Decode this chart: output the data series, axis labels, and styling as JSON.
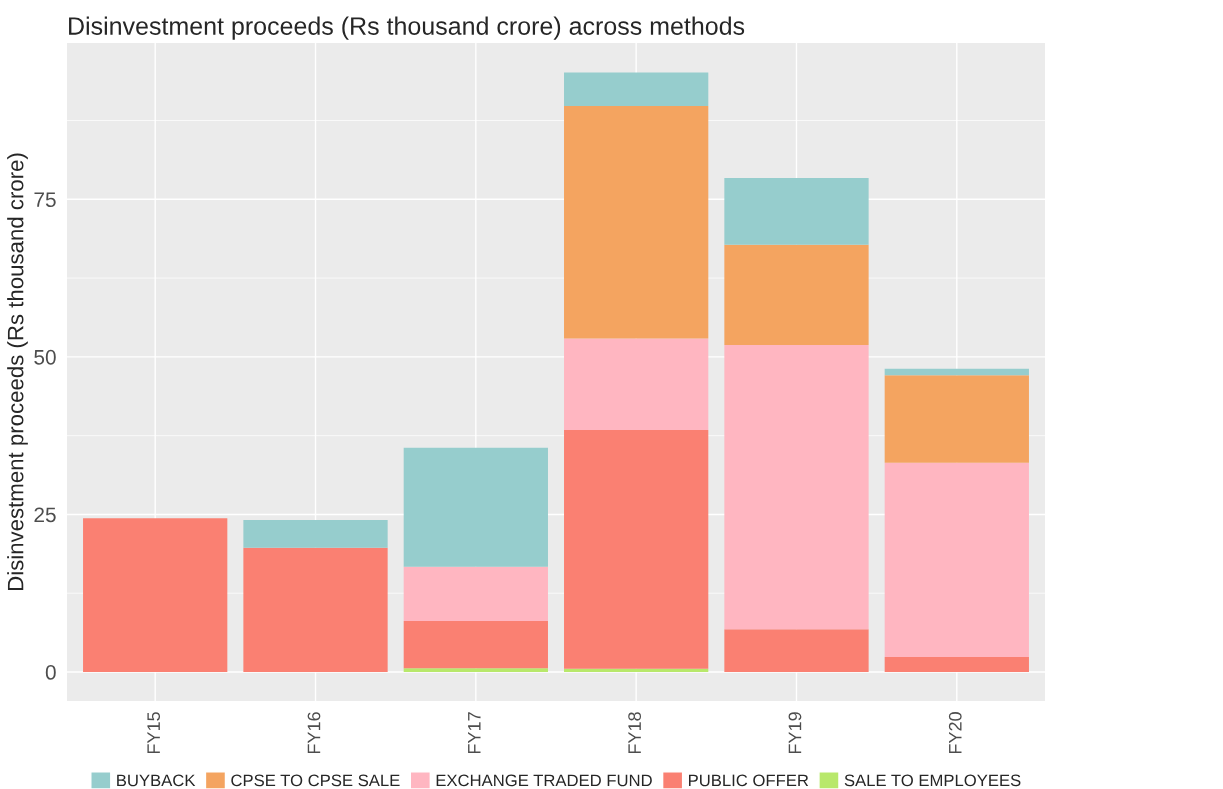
{
  "chart_data": {
    "type": "bar",
    "title": "Disinvestment proceeds (Rs thousand crore) across methods",
    "ylabel": "Disinvestment proceeds (Rs thousand crore)",
    "categories": [
      "FY15",
      "FY16",
      "FY17",
      "FY18",
      "FY19",
      "FY20"
    ],
    "stacked": true,
    "series": [
      {
        "name": "SALE TO EMPLOYEES",
        "color": "#b8e86b",
        "values": [
          null,
          null,
          0.6,
          0.5,
          null,
          null
        ]
      },
      {
        "name": "PUBLIC OFFER",
        "color": "#fa8072",
        "values": [
          24.4,
          19.7,
          7.5,
          37.9,
          6.8,
          2.4
        ]
      },
      {
        "name": "EXCHANGE TRADED FUND",
        "color": "#ffb6c1",
        "values": [
          null,
          null,
          8.6,
          14.5,
          45.1,
          30.8
        ]
      },
      {
        "name": "CPSE TO CPSE SALE",
        "color": "#f4a460",
        "values": [
          null,
          null,
          null,
          36.9,
          15.9,
          13.9
        ]
      },
      {
        "name": "BUYBACK",
        "color": "#96cdcd",
        "values": [
          null,
          4.4,
          18.9,
          5.3,
          10.6,
          1.0
        ]
      }
    ],
    "ylim": [
      -4.6,
      99.8
    ],
    "yticks": [
      0,
      25,
      50,
      75
    ],
    "grid": true,
    "legend": "bottom"
  }
}
